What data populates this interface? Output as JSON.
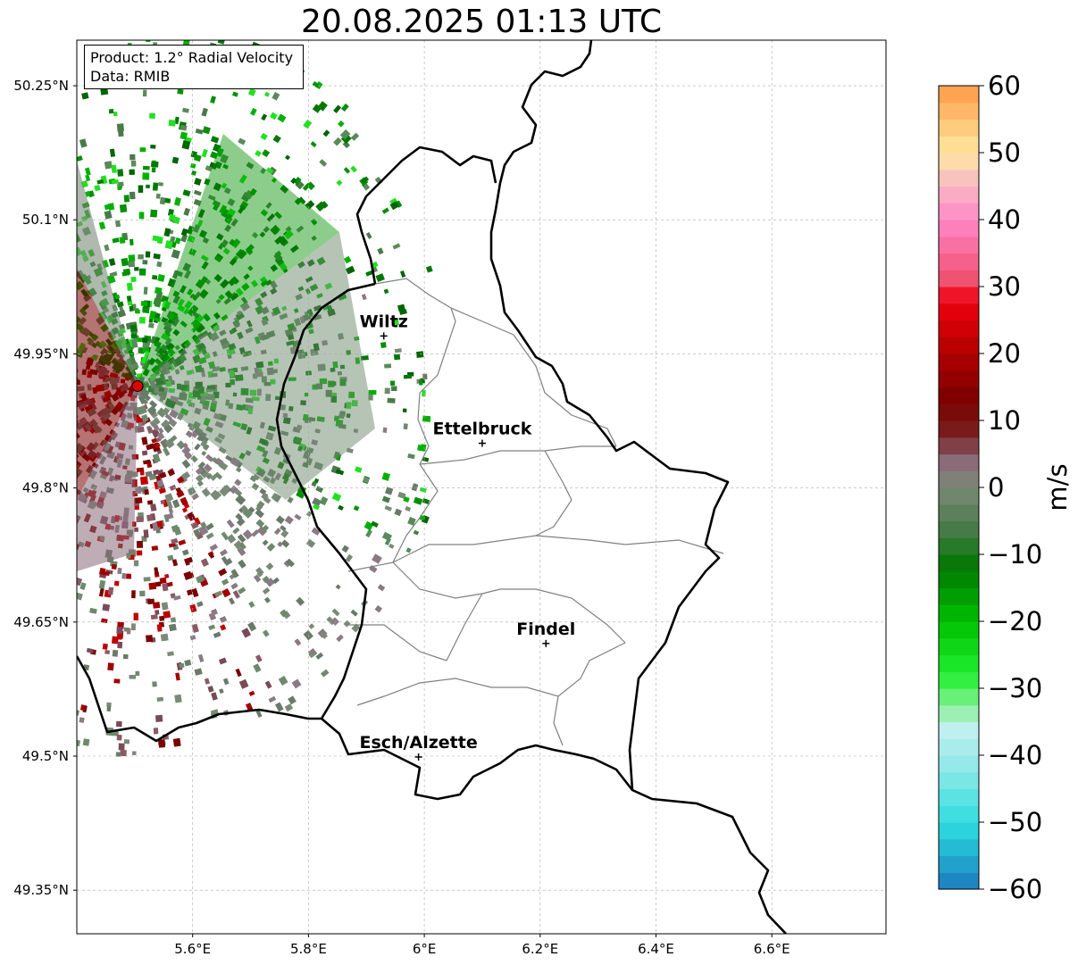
{
  "title": "20.08.2025 01:13 UTC",
  "info": {
    "product": "Product: 1.2° Radial Velocity",
    "data": "Data: RMIB"
  },
  "map": {
    "lon_range": [
      5.4,
      6.8
    ],
    "lat_range": [
      49.3,
      50.3
    ],
    "lon_ticks": [
      {
        "v": 5.6,
        "label": "5.6°E"
      },
      {
        "v": 5.8,
        "label": "5.8°E"
      },
      {
        "v": 6.0,
        "label": "6°E"
      },
      {
        "v": 6.2,
        "label": "6.2°E"
      },
      {
        "v": 6.4,
        "label": "6.4°E"
      },
      {
        "v": 6.6,
        "label": "6.6°E"
      }
    ],
    "lat_ticks": [
      {
        "v": 50.25,
        "label": "50.25°N"
      },
      {
        "v": 50.1,
        "label": "50.1°N"
      },
      {
        "v": 49.95,
        "label": "49.95°N"
      },
      {
        "v": 49.8,
        "label": "49.8°N"
      },
      {
        "v": 49.65,
        "label": "49.65°N"
      },
      {
        "v": 49.5,
        "label": "49.5°N"
      },
      {
        "v": 49.35,
        "label": "49.35°N"
      }
    ],
    "radar_site": {
      "lon": 5.505,
      "lat": 49.914,
      "color": "#e00000"
    },
    "cities": [
      {
        "name": "Wiltz",
        "lon": 5.93,
        "lat": 49.97
      },
      {
        "name": "Ettelbruck",
        "lon": 6.1,
        "lat": 49.85
      },
      {
        "name": "Findel",
        "lon": 6.21,
        "lat": 49.626
      },
      {
        "name": "Esch/Alzette",
        "lon": 5.99,
        "lat": 49.499
      }
    ],
    "grid": true
  },
  "colorbar": {
    "label": "m/s",
    "min": -60,
    "max": 60,
    "ticks": [
      {
        "v": 60,
        "label": "60"
      },
      {
        "v": 50,
        "label": "50"
      },
      {
        "v": 40,
        "label": "40"
      },
      {
        "v": 30,
        "label": "30"
      },
      {
        "v": 20,
        "label": "20"
      },
      {
        "v": 10,
        "label": "10"
      },
      {
        "v": 0,
        "label": "0"
      },
      {
        "v": -10,
        "label": "−10"
      },
      {
        "v": -20,
        "label": "−20"
      },
      {
        "v": -30,
        "label": "−30"
      },
      {
        "v": -40,
        "label": "−40"
      },
      {
        "v": -50,
        "label": "−50"
      },
      {
        "v": -60,
        "label": "−60"
      }
    ],
    "stops": [
      {
        "v": -60,
        "color": "#1f78c0"
      },
      {
        "v": -55,
        "color": "#20b0d0"
      },
      {
        "v": -50,
        "color": "#30dde0"
      },
      {
        "v": -42,
        "color": "#90e8e8"
      },
      {
        "v": -36,
        "color": "#c0f0f0"
      },
      {
        "v": -33,
        "color": "#90f0a0"
      },
      {
        "v": -28,
        "color": "#20f030"
      },
      {
        "v": -20,
        "color": "#00c000"
      },
      {
        "v": -12,
        "color": "#007800"
      },
      {
        "v": -6,
        "color": "#4a7a4a"
      },
      {
        "v": 0,
        "color": "#7a8a78"
      },
      {
        "v": 4,
        "color": "#8a6a78"
      },
      {
        "v": 8,
        "color": "#7a2020"
      },
      {
        "v": 13,
        "color": "#7a0000"
      },
      {
        "v": 22,
        "color": "#c00000"
      },
      {
        "v": 28,
        "color": "#f00010"
      },
      {
        "v": 31,
        "color": "#f05070"
      },
      {
        "v": 40,
        "color": "#ff88c8"
      },
      {
        "v": 46,
        "color": "#f8c0c0"
      },
      {
        "v": 50,
        "color": "#ffe8a0"
      },
      {
        "v": 60,
        "color": "#ff9a48"
      }
    ]
  }
}
